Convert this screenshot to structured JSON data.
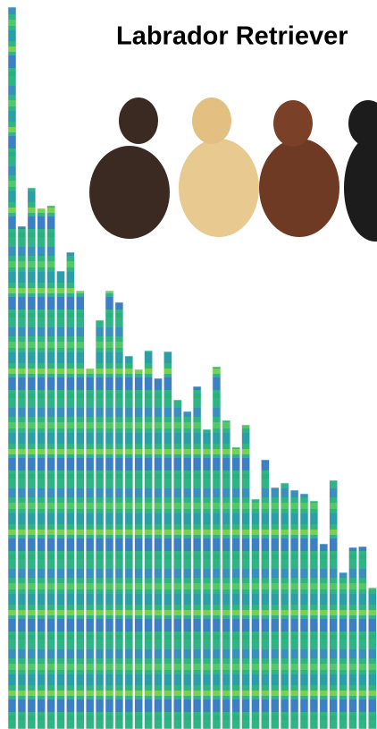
{
  "chart_data": {
    "type": "bar",
    "title": "Labrador Retriever",
    "values": [
      807,
      562,
      605,
      582,
      585,
      512,
      533,
      490,
      403,
      457,
      490,
      477,
      417,
      402,
      423,
      392,
      422,
      368,
      355,
      383,
      335,
      405,
      345,
      315,
      340,
      257,
      301,
      270,
      275,
      267,
      263,
      255,
      207,
      278,
      175,
      203,
      204,
      158
    ],
    "ylim": [
      0,
      807
    ]
  }
}
